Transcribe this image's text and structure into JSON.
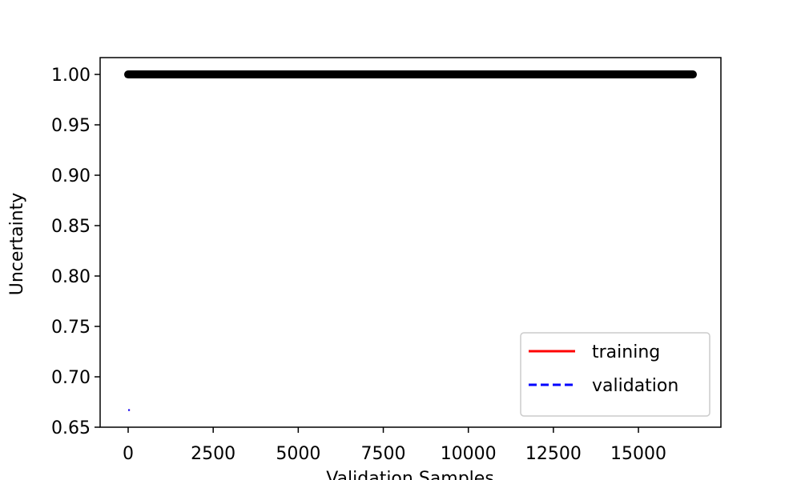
{
  "chart_data": {
    "type": "line",
    "xlabel": "Validation Samples",
    "ylabel": "Uncertainty",
    "series": [
      {
        "color": "#000000",
        "style": "solid",
        "linewidth": 10,
        "x": [
          0,
          16600
        ],
        "values": [
          1.0,
          1.0
        ]
      },
      {
        "name": "training",
        "color": "#ff0000",
        "style": "solid",
        "linewidth": 2,
        "x": [
          0,
          50
        ],
        "values": [
          0.667,
          0.667
        ]
      },
      {
        "name": "validation",
        "color": "#0000ff",
        "style": "dashed",
        "linewidth": 2,
        "x": [
          0,
          50
        ],
        "values": [
          0.667,
          0.667
        ]
      }
    ],
    "xlim": [
      -824,
      17424
    ],
    "ylim": [
      0.65,
      1.0167
    ],
    "xticks": [
      0,
      2500,
      5000,
      7500,
      10000,
      12500,
      15000
    ],
    "yticks": [
      {
        "value": 0.65,
        "label": "0.65"
      },
      {
        "value": 0.7,
        "label": "0.70"
      },
      {
        "value": 0.75,
        "label": "0.75"
      },
      {
        "value": 0.8,
        "label": "0.80"
      },
      {
        "value": 0.85,
        "label": "0.85"
      },
      {
        "value": 0.9,
        "label": "0.90"
      },
      {
        "value": 0.95,
        "label": "0.95"
      },
      {
        "value": 1.0,
        "label": "1.00"
      }
    ],
    "legend": "lower right"
  }
}
